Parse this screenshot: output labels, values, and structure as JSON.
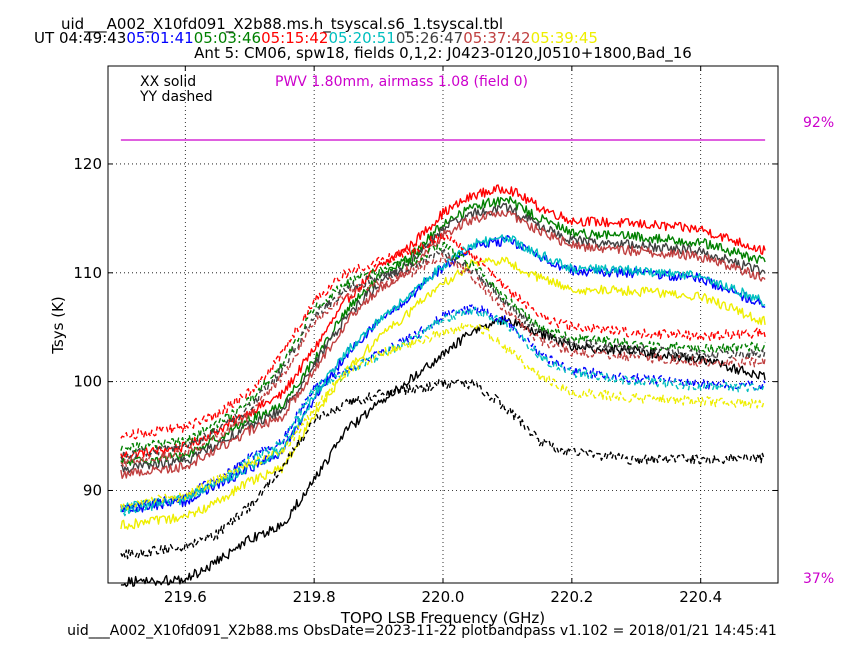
{
  "header": {
    "title": "uid___A002_X10fd091_X2b88.ms.h_tsyscal.s6_1.tsyscal.tbl",
    "ut_label": "UT",
    "times": [
      {
        "text": "04:49:43",
        "color": "#000000"
      },
      {
        "text": "05:01:41",
        "color": "#0000ff"
      },
      {
        "text": "05:03:46",
        "color": "#008000"
      },
      {
        "text": "05:15:42",
        "color": "#ff0000"
      },
      {
        "text": "05:20:51",
        "color": "#00bfbf"
      },
      {
        "text": "05:26:47",
        "color": "#404040"
      },
      {
        "text": "05:37:42",
        "color": "#c04040"
      },
      {
        "text": "05:39:45",
        "color": "#eeee00"
      }
    ],
    "subtitle": "Ant 5: CM06,  spw18,  fields 0,1,2: J0423-0120,J0510+1800,Bad_16"
  },
  "legend": {
    "xx": "XX solid",
    "yy": "YY dashed",
    "pwv": "PWV 1.80mm, airmass 1.08 (field 0)"
  },
  "footer": {
    "text": "uid___A002_X10fd091_X2b88.ms  ObsDate=2023-11-22   plotbandpass v1.102 = 2018/01/21 14:45:41"
  },
  "colors": {
    "pwv": "#cc00cc"
  },
  "chart_data": {
    "type": "line",
    "xlabel": "TOPO LSB Frequency (GHz)",
    "ylabel": "Tsys (K)",
    "xlim": [
      219.48,
      220.52
    ],
    "ylim": [
      81.5,
      129.0
    ],
    "xticks": [
      219.6,
      219.8,
      220.0,
      220.2,
      220.4
    ],
    "xtick_labels": [
      "219.6",
      "219.8",
      "220.0",
      "220.2",
      "220.4"
    ],
    "yticks": [
      90,
      100,
      110,
      120
    ],
    "ytick_labels": [
      "90",
      "100",
      "110",
      "120"
    ],
    "grid": true,
    "transmission": {
      "level": 122.2,
      "right_top_label": "92%",
      "right_bottom_label": "37%",
      "x_range": [
        219.5,
        220.5
      ]
    },
    "x_anchor": [
      219.5,
      219.6,
      219.65,
      219.7,
      219.75,
      219.8,
      219.85,
      219.9,
      219.95,
      220.0,
      220.05,
      220.1,
      220.15,
      220.2,
      220.3,
      220.4,
      220.5
    ],
    "series": [
      {
        "color": "#ff0000",
        "dash": false,
        "values": [
          93.2,
          94.0,
          95.5,
          97.2,
          98.8,
          103.0,
          107.5,
          110.5,
          112.5,
          115.5,
          117.2,
          117.8,
          116.0,
          114.8,
          114.5,
          114.0,
          112.0
        ]
      },
      {
        "color": "#008000",
        "dash": false,
        "values": [
          92.5,
          93.2,
          94.8,
          96.5,
          97.8,
          102.0,
          106.5,
          109.5,
          111.5,
          114.5,
          116.2,
          116.7,
          115.0,
          113.7,
          113.3,
          112.8,
          111.0
        ]
      },
      {
        "color": "#404040",
        "dash": false,
        "values": [
          92.0,
          92.7,
          94.3,
          96.0,
          97.3,
          101.5,
          106.0,
          109.0,
          111.0,
          114.0,
          115.5,
          116.0,
          114.3,
          113.0,
          112.5,
          112.0,
          110.0
        ]
      },
      {
        "color": "#c04040",
        "dash": false,
        "values": [
          91.5,
          92.2,
          93.8,
          95.5,
          96.8,
          101.0,
          105.5,
          108.5,
          110.5,
          113.5,
          115.0,
          115.5,
          113.8,
          112.5,
          112.0,
          111.5,
          109.5
        ]
      },
      {
        "color": "#0000ff",
        "dash": false,
        "values": [
          88.2,
          89.0,
          90.5,
          92.0,
          93.5,
          98.5,
          102.5,
          105.5,
          107.8,
          110.5,
          112.5,
          113.0,
          111.5,
          110.2,
          110.0,
          109.5,
          107.0
        ]
      },
      {
        "color": "#00bfbf",
        "dash": false,
        "values": [
          88.4,
          89.2,
          90.7,
          92.2,
          93.7,
          98.7,
          102.7,
          105.7,
          108.0,
          110.7,
          112.7,
          113.2,
          111.7,
          110.4,
          110.2,
          109.7,
          107.3
        ]
      },
      {
        "color": "#eeee00",
        "dash": false,
        "values": [
          86.8,
          87.5,
          89.0,
          90.8,
          92.0,
          97.0,
          101.0,
          104.0,
          106.5,
          109.0,
          111.0,
          111.0,
          109.5,
          108.5,
          108.3,
          107.8,
          105.5
        ]
      },
      {
        "color": "#000000",
        "dash": false,
        "values": [
          81.6,
          81.8,
          83.5,
          85.5,
          86.8,
          91.0,
          95.5,
          98.0,
          100.2,
          102.5,
          104.8,
          105.7,
          104.5,
          103.2,
          102.8,
          102.0,
          100.5
        ]
      },
      {
        "color": "#ff0000",
        "dash": true,
        "values": [
          95.0,
          95.8,
          97.0,
          99.0,
          102.5,
          107.5,
          110.0,
          111.0,
          112.0,
          113.5,
          111.5,
          108.5,
          106.0,
          105.0,
          104.5,
          104.2,
          104.5
        ]
      },
      {
        "color": "#008000",
        "dash": true,
        "values": [
          93.8,
          94.6,
          96.0,
          98.2,
          101.5,
          106.7,
          109.0,
          110.2,
          111.0,
          112.5,
          110.5,
          107.5,
          105.0,
          104.0,
          103.5,
          103.0,
          103.2
        ]
      },
      {
        "color": "#404040",
        "dash": true,
        "values": [
          93.2,
          94.0,
          95.5,
          97.6,
          101.0,
          106.0,
          108.5,
          109.6,
          110.5,
          112.0,
          110.0,
          107.0,
          104.5,
          103.5,
          103.0,
          102.5,
          102.5
        ]
      },
      {
        "color": "#c04040",
        "dash": true,
        "values": [
          92.6,
          93.4,
          94.9,
          97.0,
          100.4,
          105.5,
          108.0,
          109.0,
          110.0,
          111.5,
          109.4,
          106.4,
          103.8,
          102.8,
          102.3,
          101.8,
          101.8
        ]
      },
      {
        "color": "#0000ff",
        "dash": true,
        "values": [
          88.2,
          89.5,
          91.0,
          93.0,
          94.5,
          99.5,
          101.0,
          102.5,
          104.0,
          106.0,
          106.8,
          105.5,
          102.5,
          101.0,
          100.3,
          99.8,
          99.6
        ]
      },
      {
        "color": "#00bfbf",
        "dash": true,
        "values": [
          88.0,
          89.3,
          90.8,
          92.8,
          94.3,
          99.3,
          100.8,
          102.3,
          103.8,
          105.8,
          106.6,
          105.3,
          102.3,
          100.8,
          100.1,
          99.6,
          99.4
        ]
      },
      {
        "color": "#eeee00",
        "dash": true,
        "values": [
          88.6,
          89.5,
          91.0,
          92.5,
          93.5,
          97.5,
          101.0,
          102.5,
          103.5,
          104.5,
          105.3,
          103.0,
          100.5,
          99.0,
          98.5,
          98.2,
          98.0
        ]
      },
      {
        "color": "#000000",
        "dash": true,
        "values": [
          84.0,
          84.8,
          86.0,
          88.5,
          92.0,
          96.5,
          98.0,
          98.8,
          99.3,
          99.8,
          99.8,
          97.5,
          94.5,
          93.5,
          92.8,
          92.9,
          93.0
        ]
      }
    ]
  }
}
